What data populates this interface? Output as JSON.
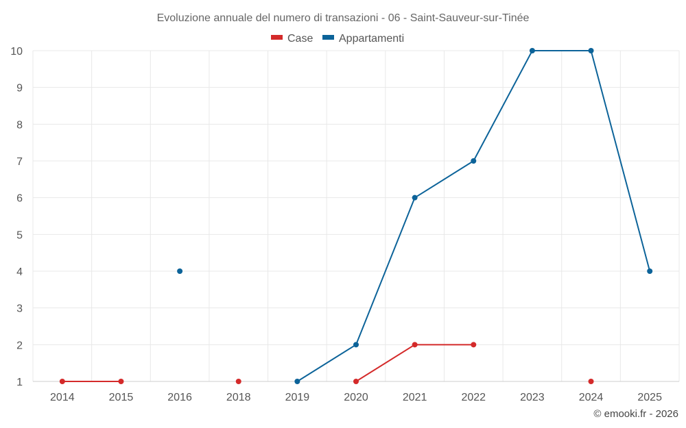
{
  "chart_data": {
    "type": "line",
    "title": "Evoluzione annuale del numero di transazioni - 06 - Saint-Sauveur-sur-Tinée",
    "categories": [
      "2014",
      "2015",
      "2016",
      "2018",
      "2019",
      "2020",
      "2021",
      "2022",
      "2023",
      "2024",
      "2025"
    ],
    "series": [
      {
        "name": "Case",
        "color": "#d42a2a",
        "values": [
          1,
          1,
          null,
          1,
          null,
          1,
          2,
          2,
          null,
          1,
          null
        ]
      },
      {
        "name": "Appartamenti",
        "color": "#0c6399",
        "values": [
          null,
          null,
          4,
          null,
          1,
          2,
          6,
          7,
          10,
          10,
          4
        ]
      }
    ],
    "ylim": [
      1,
      10
    ],
    "yticks": [
      "1",
      "2",
      "3",
      "4",
      "5",
      "6",
      "7",
      "8",
      "9",
      "10"
    ],
    "grid": true,
    "legend_position": "top-center",
    "credit": "© emooki.fr - 2026"
  }
}
